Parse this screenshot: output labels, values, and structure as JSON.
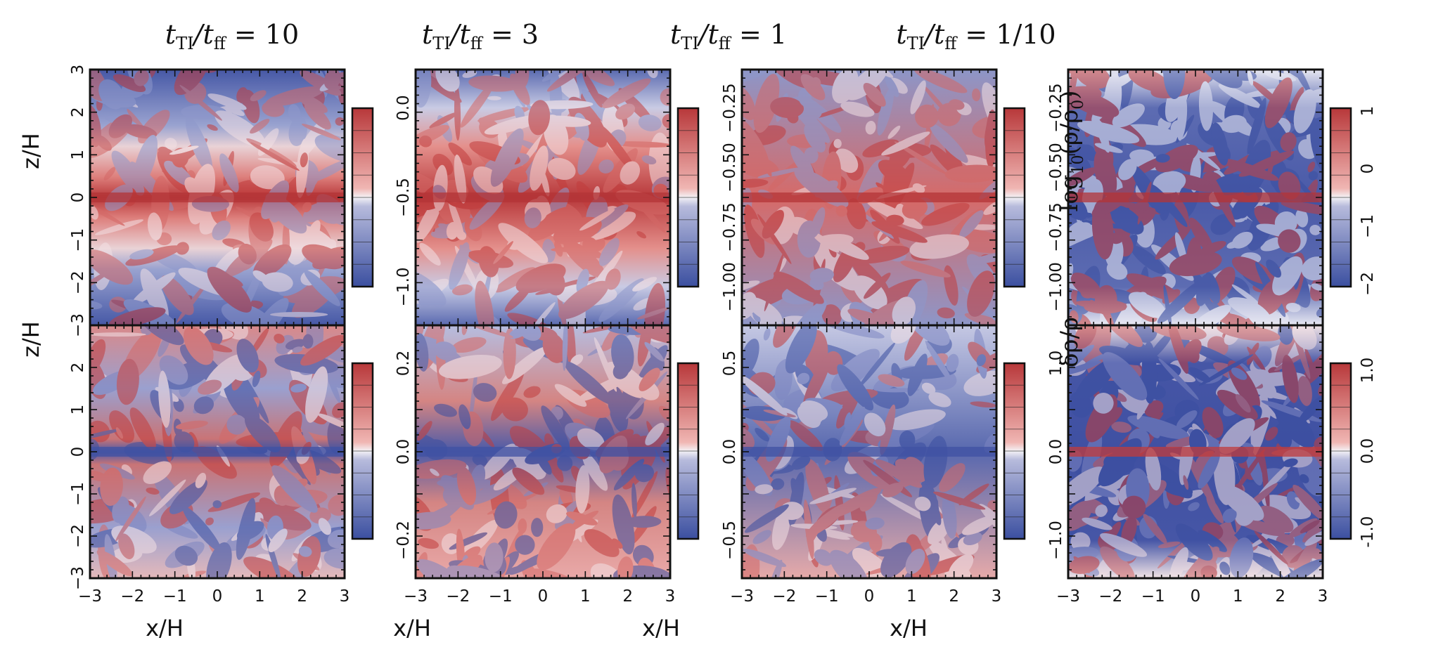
{
  "figure": {
    "column_titles": [
      "t_TI/t_ff = 10",
      "t_TI/t_ff = 3",
      "t_TI/t_ff = 1",
      "t_TI/t_ff = 1/10"
    ],
    "column_titles_rendered": [
      {
        "t1": "t",
        "s1": "TI",
        "t2": "/t",
        "s2": "ff",
        "t3": " = 10"
      },
      {
        "t1": "t",
        "s1": "TI",
        "t2": "/t",
        "s2": "ff",
        "t3": " = 3"
      },
      {
        "t1": "t",
        "s1": "TI",
        "t2": "/t",
        "s2": "ff",
        "t3": " = 1"
      },
      {
        "t1": "t",
        "s1": "TI",
        "t2": "/t",
        "s2": "ff",
        "t3": " = 1/10"
      }
    ],
    "x_label": "x/H",
    "z_label": "z/H",
    "x_ticks": [
      "−3",
      "−2",
      "−1",
      "0",
      "1",
      "2",
      "3"
    ],
    "z_ticks_left": [
      "3",
      "2",
      "1",
      "0",
      "−1",
      "−2",
      "−3"
    ],
    "colorbar_top_label": "log10(ρ/ρ0)",
    "colorbar_bottom_label": "δρ/ρ",
    "colormap": {
      "low": "#3b4fa0",
      "mid": "#f4f2f6",
      "high": "#b8383a"
    },
    "panels_top": [
      {
        "cbar_ticks": []
      },
      {
        "cbar_ticks": [
          "0.0",
          "−0.5",
          "−1.0"
        ]
      },
      {
        "cbar_ticks": [
          "−0.25",
          "−0.50",
          "−0.75",
          "−1.00"
        ]
      },
      {
        "cbar_ticks": [
          "−0.25",
          "−0.50",
          "−0.75",
          "−1.00"
        ]
      }
    ],
    "panels_bottom": [
      {
        "cbar_ticks": []
      },
      {
        "cbar_ticks": [
          "0.2",
          "0.0",
          "−0.2"
        ]
      },
      {
        "cbar_ticks": [
          "0.5",
          "0.0",
          "−0.5"
        ]
      },
      {
        "cbar_ticks": [
          "1.0",
          "0.0",
          "−1.0"
        ]
      }
    ],
    "right_cbar_top_ticks": [
      "1",
      "0",
      "−1",
      "−2"
    ],
    "right_cbar_bottom_ticks": [
      "1.0",
      "0.0",
      "-1.0"
    ]
  }
}
